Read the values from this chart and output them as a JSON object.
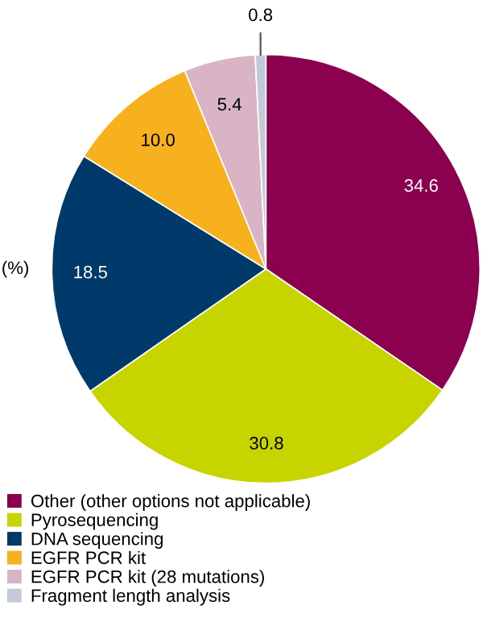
{
  "chart_data": {
    "type": "pie",
    "categories": [
      "Other (other options not applicable)",
      "Pyrosequencing",
      "DNA sequencing",
      "EGFR PCR kit",
      "EGFR PCR kit (28 mutations)",
      "Fragment length analysis"
    ],
    "values": [
      34.6,
      30.8,
      18.5,
      10.0,
      5.4,
      0.8
    ],
    "colors": [
      "#8c0050",
      "#c8d400",
      "#003a6b",
      "#f7b11e",
      "#d8b4c4",
      "#c4c9da"
    ],
    "value_labels": [
      "34.6",
      "30.8",
      "18.5",
      "10.0",
      "5.4",
      "0.8"
    ],
    "legend": "bottom",
    "annotations": [
      "(%)"
    ]
  }
}
